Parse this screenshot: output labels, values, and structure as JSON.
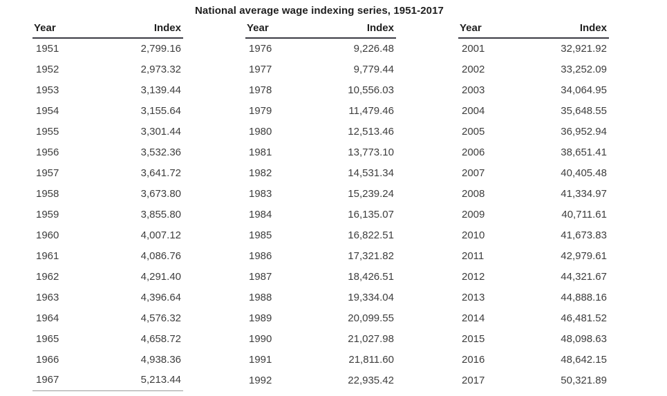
{
  "title": "National average wage indexing series, 1951-2017",
  "table": {
    "headers": {
      "year": "Year",
      "index": "Index"
    }
  },
  "chart_data": {
    "type": "table",
    "title": "National average wage indexing series, 1951-2017",
    "columns": [
      "Year",
      "Index"
    ],
    "groups": [
      {
        "rows": [
          [
            "1951",
            "2,799.16"
          ],
          [
            "1952",
            "2,973.32"
          ],
          [
            "1953",
            "3,139.44"
          ],
          [
            "1954",
            "3,155.64"
          ],
          [
            "1955",
            "3,301.44"
          ],
          [
            "1956",
            "3,532.36"
          ],
          [
            "1957",
            "3,641.72"
          ],
          [
            "1958",
            "3,673.80"
          ],
          [
            "1959",
            "3,855.80"
          ],
          [
            "1960",
            "4,007.12"
          ],
          [
            "1961",
            "4,086.76"
          ],
          [
            "1962",
            "4,291.40"
          ],
          [
            "1963",
            "4,396.64"
          ],
          [
            "1964",
            "4,576.32"
          ],
          [
            "1965",
            "4,658.72"
          ],
          [
            "1966",
            "4,938.36"
          ],
          [
            "1967",
            "5,213.44"
          ]
        ]
      },
      {
        "rows": [
          [
            "1976",
            "9,226.48"
          ],
          [
            "1977",
            "9,779.44"
          ],
          [
            "1978",
            "10,556.03"
          ],
          [
            "1979",
            "11,479.46"
          ],
          [
            "1980",
            "12,513.46"
          ],
          [
            "1981",
            "13,773.10"
          ],
          [
            "1982",
            "14,531.34"
          ],
          [
            "1983",
            "15,239.24"
          ],
          [
            "1984",
            "16,135.07"
          ],
          [
            "1985",
            "16,822.51"
          ],
          [
            "1986",
            "17,321.82"
          ],
          [
            "1987",
            "18,426.51"
          ],
          [
            "1988",
            "19,334.04"
          ],
          [
            "1989",
            "20,099.55"
          ],
          [
            "1990",
            "21,027.98"
          ],
          [
            "1991",
            "21,811.60"
          ],
          [
            "1992",
            "22,935.42"
          ]
        ]
      },
      {
        "rows": [
          [
            "2001",
            "32,921.92"
          ],
          [
            "2002",
            "33,252.09"
          ],
          [
            "2003",
            "34,064.95"
          ],
          [
            "2004",
            "35,648.55"
          ],
          [
            "2005",
            "36,952.94"
          ],
          [
            "2006",
            "38,651.41"
          ],
          [
            "2007",
            "40,405.48"
          ],
          [
            "2008",
            "41,334.97"
          ],
          [
            "2009",
            "40,711.61"
          ],
          [
            "2010",
            "41,673.83"
          ],
          [
            "2011",
            "42,979.61"
          ],
          [
            "2012",
            "44,321.67"
          ],
          [
            "2013",
            "44,888.16"
          ],
          [
            "2014",
            "46,481.52"
          ],
          [
            "2015",
            "48,098.63"
          ],
          [
            "2016",
            "48,642.15"
          ],
          [
            "2017",
            "50,321.89"
          ]
        ]
      }
    ]
  },
  "colors": {
    "background": "#ffffff",
    "heading": "#1f1f1f",
    "text": "#3d3d3d",
    "rule": "#3a3a42",
    "partial_rule": "#9a9a9a"
  }
}
